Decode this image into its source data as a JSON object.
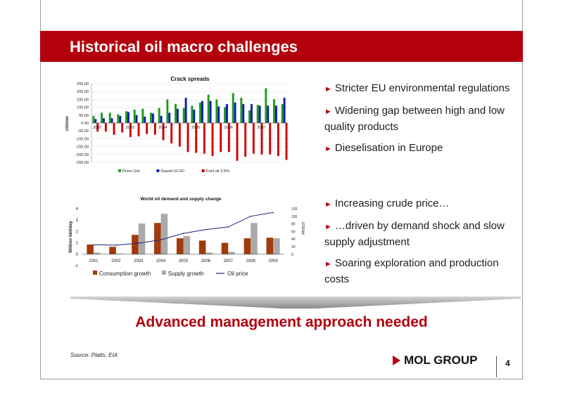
{
  "slide": {
    "title": "Historical oil macro challenges",
    "headline": "Advanced management approach needed",
    "source": "Source: Platts, EIA",
    "logo_text": "MOL GROUP",
    "page_number": "4",
    "accent_color": "#b3000c"
  },
  "bullets_top": [
    "Stricter EU environmental regulations",
    "Widening gap between high and low quality products",
    "Dieselisation in Europe"
  ],
  "bullets_bottom": [
    "Increasing crude price…",
    "…driven by demand shock and slow supply adjustment",
    "Soaring exploration and production costs"
  ],
  "chart_data": [
    {
      "type": "bar",
      "title": "Crack spreads",
      "ylabel": "USD/bbl",
      "ylim": [
        -250,
        250
      ],
      "yticks": [
        "250.00",
        "200.00",
        "150.00",
        "100.00",
        "50.00",
        "0.00",
        "-50.00",
        "-100.00",
        "-150.00",
        "-200.00",
        "-250.00"
      ],
      "year_labels": [
        "2002",
        "2003",
        "2004",
        "2005",
        "2006",
        "2007"
      ],
      "legend": "bottom",
      "series": [
        {
          "name": "Prem Unl",
          "color": "#1e9a1e",
          "values": [
            45,
            65,
            65,
            55,
            75,
            85,
            90,
            65,
            95,
            150,
            120,
            95,
            110,
            130,
            180,
            150,
            100,
            190,
            160,
            80,
            115,
            220,
            150,
            120
          ]
        },
        {
          "name": "Gasoil ULSD",
          "color": "#0a1fb4",
          "values": [
            25,
            30,
            30,
            45,
            70,
            50,
            40,
            60,
            45,
            65,
            90,
            160,
            85,
            140,
            140,
            105,
            120,
            130,
            120,
            120,
            110,
            110,
            110,
            160
          ]
        },
        {
          "name": "Fuel oil 3.5%",
          "color": "#d00000",
          "values": [
            -55,
            -55,
            -75,
            -60,
            -90,
            -85,
            -70,
            -75,
            -110,
            -130,
            -150,
            -185,
            -190,
            -195,
            -210,
            -185,
            -185,
            -240,
            -215,
            -195,
            -200,
            -200,
            -210,
            -235
          ]
        }
      ]
    },
    {
      "type": "bar",
      "title": "World oil demand and supply change",
      "ylabel": "Million bbl/day",
      "y2label": "USD/bbl",
      "categories": [
        "2001",
        "2002",
        "2003",
        "2004",
        "2005",
        "2006",
        "2007",
        "2008",
        "2009"
      ],
      "ylim": [
        -1,
        4
      ],
      "yticks": [
        "4",
        "3",
        "2",
        "1",
        "0",
        "-1"
      ],
      "y2lim": [
        0,
        120
      ],
      "y2ticks": [
        "120",
        "100",
        "80",
        "60",
        "40",
        "20",
        "0"
      ],
      "legend": "bottom",
      "series": [
        {
          "name": "Consumption growth",
          "color": "#a33a0c",
          "values": [
            0.85,
            0.65,
            1.7,
            2.75,
            1.4,
            1.2,
            1.0,
            1.4,
            1.45
          ]
        },
        {
          "name": "Supply growth",
          "color": "#aaaaaa",
          "values": [
            0.15,
            0.05,
            2.7,
            3.55,
            1.6,
            0.15,
            0.2,
            2.75,
            1.4
          ]
        },
        {
          "name": "Oil price",
          "color": "#1a237e",
          "line": true,
          "values": [
            25,
            24,
            29,
            38,
            55,
            65,
            72,
            100,
            110
          ]
        }
      ]
    }
  ]
}
